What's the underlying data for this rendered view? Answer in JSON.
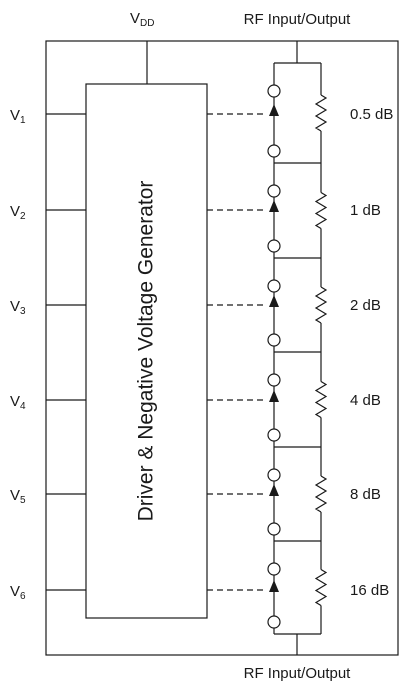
{
  "supply": {
    "main": "V",
    "sub": "DD"
  },
  "rf_top": "RF Input/Output",
  "rf_bottom": "RF Input/Output",
  "driver_label": "Driver & Negative Voltage Generator",
  "controls": [
    {
      "main": "V",
      "sub": "1"
    },
    {
      "main": "V",
      "sub": "2"
    },
    {
      "main": "V",
      "sub": "3"
    },
    {
      "main": "V",
      "sub": "4"
    },
    {
      "main": "V",
      "sub": "5"
    },
    {
      "main": "V",
      "sub": "6"
    }
  ],
  "attenuation_steps": [
    "0.5 dB",
    "1 dB",
    "2 dB",
    "4 dB",
    "8 dB",
    "16 dB"
  ]
}
